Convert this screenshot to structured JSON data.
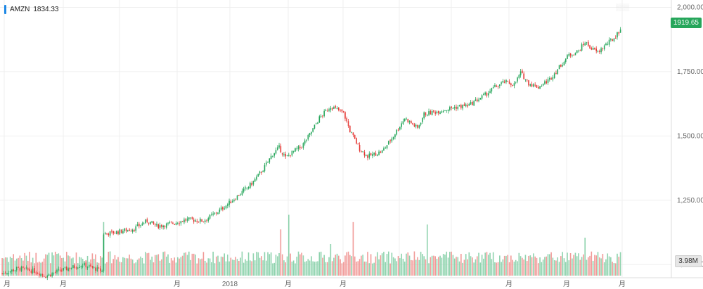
{
  "legend": {
    "symbol": "AMZN",
    "price": "1834.33"
  },
  "last_price_label": "1919.65",
  "volume_label": "3.98M",
  "colors": {
    "up": "#26a65b",
    "down": "#e53935",
    "vol_up": "#8fd3ae",
    "vol_down": "#f19a98",
    "grid": "#efefef",
    "accent": "#1e88e5"
  },
  "chart_data": {
    "type": "candlestick",
    "title": "AMZN",
    "price_range": [
      935,
      2015
    ],
    "y_ticks": [
      "2,000.00",
      "1,750.00",
      "1,500.00",
      "1,250.00",
      "1,000.00"
    ],
    "x_tick_labels": [
      "月",
      "月",
      "月",
      "2018",
      "月",
      "月",
      "月",
      "月",
      "月"
    ],
    "grid": true,
    "candles": [],
    "volume": []
  }
}
